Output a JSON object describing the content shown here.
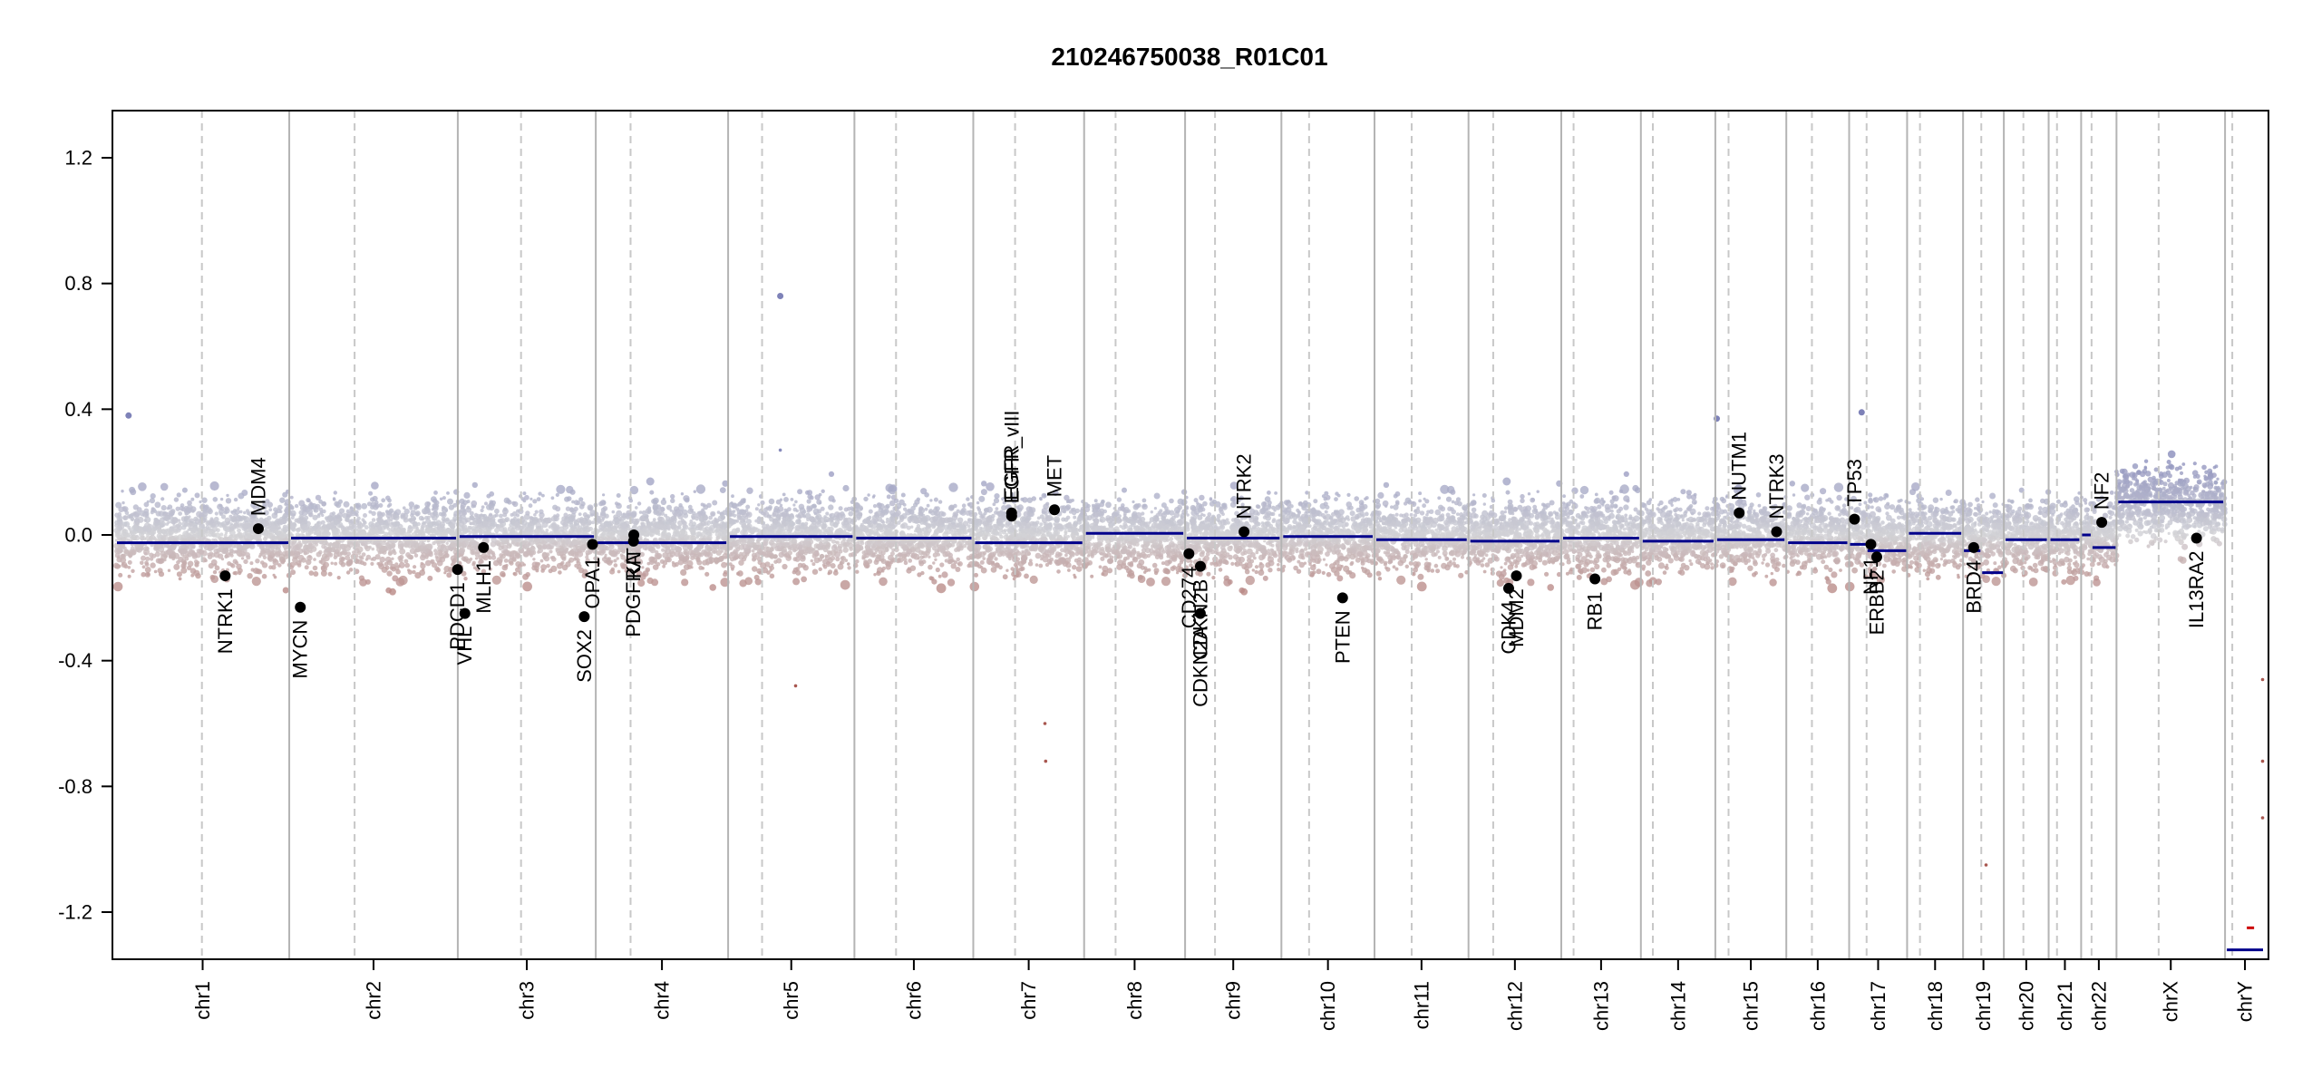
{
  "chart_data": {
    "type": "scatter",
    "title": "210246750038_R01C01",
    "xlabel": "",
    "ylabel": "",
    "ylim": [
      -1.35,
      1.35
    ],
    "yticks": [
      "1.2",
      "0.8",
      "0.4",
      "0.0",
      "-0.4",
      "-0.8",
      "-1.2"
    ],
    "grid": "chromosome boundaries (solid) and centromeres (dashed)",
    "colors": {
      "gain": "#7e82b8",
      "neutral": "#d2d2d6",
      "loss": "#a8574f",
      "segment": "#00008b",
      "gene_point": "#000000",
      "boundary": "#b4b4b4",
      "centromere": "#c8c8c8"
    },
    "chromosomes": [
      {
        "name": "chr1",
        "length": 248.9,
        "centromere": 123.4,
        "segment": -0.025
      },
      {
        "name": "chr2",
        "length": 242.2,
        "centromere": 93.9,
        "segment": -0.01
      },
      {
        "name": "chr3",
        "length": 198.3,
        "centromere": 90.9,
        "segment": -0.005
      },
      {
        "name": "chr4",
        "length": 190.2,
        "centromere": 50.0,
        "segment": -0.025
      },
      {
        "name": "chr5",
        "length": 181.5,
        "centromere": 48.8,
        "segment": -0.005
      },
      {
        "name": "chr6",
        "length": 170.8,
        "centromere": 59.8,
        "segment": -0.01
      },
      {
        "name": "chr7",
        "length": 159.3,
        "centromere": 60.1,
        "segment": -0.025
      },
      {
        "name": "chr8",
        "length": 145.1,
        "centromere": 45.2,
        "segment": 0.005
      },
      {
        "name": "chr9",
        "length": 138.4,
        "centromere": 43.0,
        "segment": -0.01
      },
      {
        "name": "chr10",
        "length": 133.8,
        "centromere": 39.8,
        "segment": -0.005
      },
      {
        "name": "chr11",
        "length": 135.1,
        "centromere": 53.4,
        "segment": -0.015
      },
      {
        "name": "chr12",
        "length": 133.3,
        "centromere": 35.5,
        "segment": -0.02
      },
      {
        "name": "chr13",
        "length": 114.4,
        "centromere": 17.7,
        "segment": -0.01
      },
      {
        "name": "chr14",
        "length": 107.0,
        "centromere": 17.2,
        "segment": -0.02
      },
      {
        "name": "chr15",
        "length": 102.0,
        "centromere": 19.0,
        "segment": -0.015
      },
      {
        "name": "chr16",
        "length": 90.3,
        "centromere": 36.8,
        "segment": -0.025
      },
      {
        "name": "chr17",
        "length": 83.3,
        "centromere": 25.1,
        "segment": -0.045
      },
      {
        "name": "chr18",
        "length": 80.4,
        "centromere": 18.5,
        "segment": 0.005
      },
      {
        "name": "chr19",
        "length": 58.6,
        "centromere": 26.2,
        "segment": -0.12
      },
      {
        "name": "chr20",
        "length": 64.4,
        "centromere": 28.1,
        "segment": -0.015
      },
      {
        "name": "chr21",
        "length": 46.7,
        "centromere": 12.0,
        "segment": -0.015
      },
      {
        "name": "chr22",
        "length": 50.8,
        "centromere": 15.0,
        "segment": -0.04
      },
      {
        "name": "chrX",
        "length": 156.0,
        "centromere": 60.6,
        "segment": 0.105
      },
      {
        "name": "chrY",
        "length": 57.2,
        "centromere": 10.4,
        "segment": -1.32
      }
    ],
    "segment_breaks": [
      {
        "chrom": "chr1",
        "pos": 0,
        "end": 248.9,
        "value": -0.025
      },
      {
        "chrom": "chr17",
        "pos": 0,
        "end": 25.1,
        "value": -0.03
      },
      {
        "chrom": "chr17",
        "pos": 25.1,
        "end": 83.3,
        "value": -0.05
      },
      {
        "chrom": "chr19",
        "pos": 0,
        "end": 26.2,
        "value": -0.05
      },
      {
        "chrom": "chr19",
        "pos": 26.2,
        "end": 58.6,
        "value": -0.12
      },
      {
        "chrom": "chr22",
        "pos": 0,
        "end": 15.0,
        "value": 0.0
      },
      {
        "chrom": "chr22",
        "pos": 15.0,
        "end": 50.8,
        "value": -0.04
      },
      {
        "chrom": "chrY",
        "pos": 30,
        "end": 48,
        "value": -1.25,
        "color": "#cc0000",
        "dashed": true
      }
    ],
    "genes": [
      {
        "name": "NTRK1",
        "chrom": "chr1",
        "pos": 156.8,
        "value": -0.13,
        "label_side": "below"
      },
      {
        "name": "MDM4",
        "chrom": "chr1",
        "pos": 204.5,
        "value": 0.02,
        "label_side": "above"
      },
      {
        "name": "MYCN",
        "chrom": "chr2",
        "pos": 15.9,
        "value": -0.23,
        "label_side": "below"
      },
      {
        "name": "VHL",
        "chrom": "chr3",
        "pos": 10.2,
        "value": -0.25,
        "label_side": "below"
      },
      {
        "name": "PDCD1",
        "chrom": "chr2",
        "pos": 241.9,
        "value": -0.11,
        "label_side": "below"
      },
      {
        "name": "MLH1",
        "chrom": "chr3",
        "pos": 37.0,
        "value": -0.04,
        "label_side": "below"
      },
      {
        "name": "SOX2",
        "chrom": "chr3",
        "pos": 181.7,
        "value": -0.26,
        "label_side": "below"
      },
      {
        "name": "OPA1",
        "chrom": "chr3",
        "pos": 193.6,
        "value": -0.03,
        "label_side": "below"
      },
      {
        "name": "PDGFRA",
        "chrom": "chr4",
        "pos": 54.2,
        "value": -0.02,
        "label_side": "below"
      },
      {
        "name": "KIT",
        "chrom": "chr4",
        "pos": 54.7,
        "value": 0.0,
        "label_side": "below"
      },
      {
        "name": "EGFR",
        "chrom": "chr7",
        "pos": 55.1,
        "value": 0.07,
        "label_side": "above"
      },
      {
        "name": "EGFR_vIII",
        "chrom": "chr7",
        "pos": 55.2,
        "value": 0.06,
        "label_side": "above"
      },
      {
        "name": "MET",
        "chrom": "chr7",
        "pos": 116.7,
        "value": 0.08,
        "label_side": "above"
      },
      {
        "name": "CD274",
        "chrom": "chr9",
        "pos": 5.5,
        "value": -0.06,
        "label_side": "below"
      },
      {
        "name": "CDKN2A",
        "chrom": "chr9",
        "pos": 21.9,
        "value": -0.25,
        "label_side": "below"
      },
      {
        "name": "CDKN2B",
        "chrom": "chr9",
        "pos": 22.0,
        "value": -0.1,
        "label_side": "below"
      },
      {
        "name": "NTRK2",
        "chrom": "chr9",
        "pos": 84.7,
        "value": 0.01,
        "label_side": "above"
      },
      {
        "name": "PTEN",
        "chrom": "chr10",
        "pos": 87.9,
        "value": -0.2,
        "label_side": "below"
      },
      {
        "name": "CDK4",
        "chrom": "chr12",
        "pos": 57.7,
        "value": -0.17,
        "label_side": "below"
      },
      {
        "name": "MDM2",
        "chrom": "chr12",
        "pos": 68.8,
        "value": -0.13,
        "label_side": "below"
      },
      {
        "name": "RB1",
        "chrom": "chr13",
        "pos": 48.4,
        "value": -0.14,
        "label_side": "below"
      },
      {
        "name": "NUTM1",
        "chrom": "chr15",
        "pos": 34.3,
        "value": 0.07,
        "label_side": "above"
      },
      {
        "name": "NTRK3",
        "chrom": "chr15",
        "pos": 88.0,
        "value": 0.01,
        "label_side": "above"
      },
      {
        "name": "TP53",
        "chrom": "chr17",
        "pos": 7.7,
        "value": 0.05,
        "label_side": "above"
      },
      {
        "name": "NF1",
        "chrom": "chr17",
        "pos": 31.2,
        "value": -0.03,
        "label_side": "below"
      },
      {
        "name": "ERBB2",
        "chrom": "chr17",
        "pos": 39.7,
        "value": -0.07,
        "label_side": "below"
      },
      {
        "name": "BRD4",
        "chrom": "chr19",
        "pos": 15.3,
        "value": -0.04,
        "label_side": "below"
      },
      {
        "name": "NF2",
        "chrom": "chr22",
        "pos": 29.6,
        "value": 0.04,
        "label_side": "above"
      },
      {
        "name": "IL13RA2",
        "chrom": "chrX",
        "pos": 115.0,
        "value": -0.01,
        "label_side": "below"
      }
    ],
    "outliers": [
      {
        "chrom": "chr1",
        "pos": 18,
        "value": 0.38
      },
      {
        "chrom": "chr5",
        "pos": 75,
        "value": 0.76
      },
      {
        "chrom": "chr5",
        "pos": 75,
        "value": 0.27
      },
      {
        "chrom": "chr17",
        "pos": 18,
        "value": 0.39
      },
      {
        "chrom": "chr15",
        "pos": 2,
        "value": 0.37
      },
      {
        "chrom": "chr7",
        "pos": 103,
        "value": -0.6
      },
      {
        "chrom": "chr7",
        "pos": 104,
        "value": -0.72
      },
      {
        "chrom": "chr5",
        "pos": 97,
        "value": -0.48
      },
      {
        "chrom": "chr19",
        "pos": 33,
        "value": -1.05
      },
      {
        "chrom": "chrY",
        "pos": 54,
        "value": -0.46
      },
      {
        "chrom": "chrY",
        "pos": 54,
        "value": -0.72
      },
      {
        "chrom": "chrY",
        "pos": 54,
        "value": -0.9
      }
    ]
  }
}
